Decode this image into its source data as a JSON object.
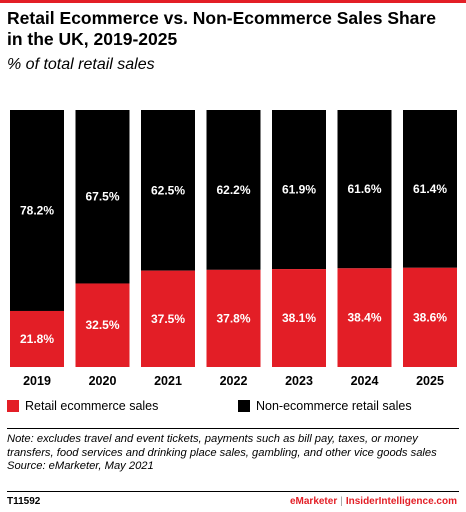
{
  "colors": {
    "ecommerce": "#e31e26",
    "non_ecommerce": "#000000",
    "accent": "#e31e26"
  },
  "header": {
    "title": "Retail Ecommerce vs. Non-Ecommerce Sales Share in the UK, 2019-2025",
    "subtitle": "% of total retail sales"
  },
  "chart_data": {
    "type": "bar",
    "stacked": true,
    "title": "Retail Ecommerce vs. Non-Ecommerce Sales Share in the UK, 2019-2025",
    "subtitle": "% of total retail sales",
    "categories": [
      "2019",
      "2020",
      "2021",
      "2022",
      "2023",
      "2024",
      "2025"
    ],
    "series": [
      {
        "name": "Retail ecommerce sales",
        "values": [
          21.8,
          32.5,
          37.5,
          37.8,
          38.1,
          38.4,
          38.6
        ],
        "labels": [
          "21.8%",
          "32.5%",
          "37.5%",
          "37.8%",
          "38.1%",
          "38.4%",
          "38.6%"
        ]
      },
      {
        "name": "Non-ecommerce retail sales",
        "values": [
          78.2,
          67.5,
          62.5,
          62.2,
          61.9,
          61.6,
          61.4
        ],
        "labels": [
          "78.2%",
          "67.5%",
          "62.5%",
          "62.2%",
          "61.9%",
          "61.6%",
          "61.4%"
        ]
      }
    ],
    "ylim": [
      0,
      100
    ],
    "grid": false,
    "legend": "bottom"
  },
  "legend": {
    "ecommerce_label": "Retail ecommerce sales",
    "non_ecommerce_label": "Non-ecommerce retail sales"
  },
  "footer": {
    "note": "Note: excludes travel and event tickets, payments such as bill pay, taxes, or money transfers, food services and drinking place sales, gambling, and other vice goods sales",
    "source": "Source: eMarketer, May 2021",
    "chart_id": "T11592",
    "brand_left": "eMarketer",
    "brand_separator": "|",
    "brand_right": "InsiderIntelligence.com"
  }
}
